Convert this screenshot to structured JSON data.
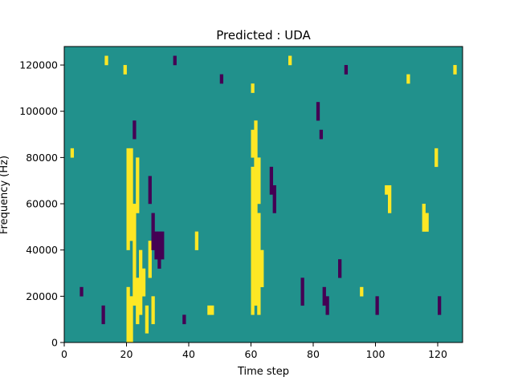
{
  "chart_data": {
    "type": "heatmap",
    "title": "Predicted : UDA",
    "xlabel": "Time step",
    "ylabel": "Frequency (Hz)",
    "xlim": [
      0,
      128
    ],
    "ylim": [
      0,
      128000
    ],
    "xticks": [
      0,
      20,
      40,
      60,
      80,
      100,
      120
    ],
    "yticks": [
      0,
      20000,
      40000,
      60000,
      80000,
      100000,
      120000
    ],
    "ytick_labels": [
      "0",
      "20000",
      "40000",
      "60000",
      "80000",
      "100000",
      "120000"
    ],
    "n_time_steps": 128,
    "n_frequency_bins": 64,
    "colormap": "viridis",
    "values_legend": {
      "low": -1,
      "background": 0,
      "high": 1
    },
    "colors": {
      "background": "#21918c",
      "high": "#fde725",
      "low": "#440154"
    },
    "grid": false,
    "cells": [
      {
        "t": 20,
        "f0": 0,
        "f1": 12,
        "v": 1
      },
      {
        "t": 21,
        "f0": 0,
        "f1": 10,
        "v": 1
      },
      {
        "t": 20,
        "f0": 20,
        "f1": 42,
        "v": 1
      },
      {
        "t": 21,
        "f0": 22,
        "f1": 42,
        "v": 1
      },
      {
        "t": 22,
        "f0": 8,
        "f1": 30,
        "v": 1
      },
      {
        "t": 23,
        "f0": 4,
        "f1": 14,
        "v": 1
      },
      {
        "t": 23,
        "f0": 28,
        "f1": 40,
        "v": 1
      },
      {
        "t": 24,
        "f0": 6,
        "f1": 20,
        "v": 1
      },
      {
        "t": 25,
        "f0": 10,
        "f1": 16,
        "v": 1
      },
      {
        "t": 26,
        "f0": 2,
        "f1": 8,
        "v": 1
      },
      {
        "t": 27,
        "f0": 14,
        "f1": 22,
        "v": 1
      },
      {
        "t": 28,
        "f0": 4,
        "f1": 10,
        "v": 1
      },
      {
        "t": 60,
        "f0": 6,
        "f1": 38,
        "v": 1
      },
      {
        "t": 61,
        "f0": 8,
        "f1": 48,
        "v": 1
      },
      {
        "t": 62,
        "f0": 6,
        "f1": 28,
        "v": 1
      },
      {
        "t": 62,
        "f0": 30,
        "f1": 40,
        "v": 1
      },
      {
        "t": 63,
        "f0": 12,
        "f1": 20,
        "v": 1
      },
      {
        "t": 60,
        "f0": 40,
        "f1": 46,
        "v": 1
      },
      {
        "t": 46,
        "f0": 6,
        "f1": 8,
        "v": 1
      },
      {
        "t": 47,
        "f0": 6,
        "f1": 8,
        "v": 1
      },
      {
        "t": 28,
        "f0": 20,
        "f1": 28,
        "v": -1
      },
      {
        "t": 29,
        "f0": 18,
        "f1": 24,
        "v": -1
      },
      {
        "t": 30,
        "f0": 16,
        "f1": 24,
        "v": -1
      },
      {
        "t": 31,
        "f0": 18,
        "f1": 24,
        "v": -1
      },
      {
        "t": 27,
        "f0": 30,
        "f1": 36,
        "v": -1
      },
      {
        "t": 22,
        "f0": 44,
        "f1": 48,
        "v": -1
      },
      {
        "t": 66,
        "f0": 32,
        "f1": 38,
        "v": -1
      },
      {
        "t": 67,
        "f0": 28,
        "f1": 34,
        "v": -1
      },
      {
        "t": 76,
        "f0": 8,
        "f1": 14,
        "v": -1
      },
      {
        "t": 83,
        "f0": 8,
        "f1": 12,
        "v": -1
      },
      {
        "t": 84,
        "f0": 6,
        "f1": 10,
        "v": -1
      },
      {
        "t": 100,
        "f0": 6,
        "f1": 10,
        "v": -1
      },
      {
        "t": 120,
        "f0": 6,
        "f1": 10,
        "v": -1
      },
      {
        "t": 81,
        "f0": 48,
        "f1": 52,
        "v": -1
      },
      {
        "t": 82,
        "f0": 44,
        "f1": 46,
        "v": -1
      },
      {
        "t": 116,
        "f0": 24,
        "f1": 28,
        "v": 1
      },
      {
        "t": 115,
        "f0": 24,
        "f1": 30,
        "v": 1
      },
      {
        "t": 104,
        "f0": 28,
        "f1": 34,
        "v": 1
      },
      {
        "t": 103,
        "f0": 32,
        "f1": 34,
        "v": 1
      },
      {
        "t": 119,
        "f0": 38,
        "f1": 42,
        "v": 1
      },
      {
        "t": 2,
        "f0": 40,
        "f1": 42,
        "v": 1
      },
      {
        "t": 13,
        "f0": 60,
        "f1": 62,
        "v": 1
      },
      {
        "t": 19,
        "f0": 58,
        "f1": 60,
        "v": 1
      },
      {
        "t": 35,
        "f0": 60,
        "f1": 62,
        "v": -1
      },
      {
        "t": 72,
        "f0": 60,
        "f1": 62,
        "v": 1
      },
      {
        "t": 50,
        "f0": 56,
        "f1": 58,
        "v": -1
      },
      {
        "t": 60,
        "f0": 54,
        "f1": 56,
        "v": 1
      },
      {
        "t": 90,
        "f0": 58,
        "f1": 60,
        "v": -1
      },
      {
        "t": 110,
        "f0": 56,
        "f1": 58,
        "v": 1
      },
      {
        "t": 125,
        "f0": 58,
        "f1": 60,
        "v": 1
      },
      {
        "t": 5,
        "f0": 10,
        "f1": 12,
        "v": -1
      },
      {
        "t": 12,
        "f0": 4,
        "f1": 8,
        "v": -1
      },
      {
        "t": 38,
        "f0": 4,
        "f1": 6,
        "v": -1
      },
      {
        "t": 42,
        "f0": 20,
        "f1": 24,
        "v": 1
      },
      {
        "t": 88,
        "f0": 14,
        "f1": 18,
        "v": -1
      },
      {
        "t": 95,
        "f0": 10,
        "f1": 12,
        "v": 1
      }
    ]
  }
}
